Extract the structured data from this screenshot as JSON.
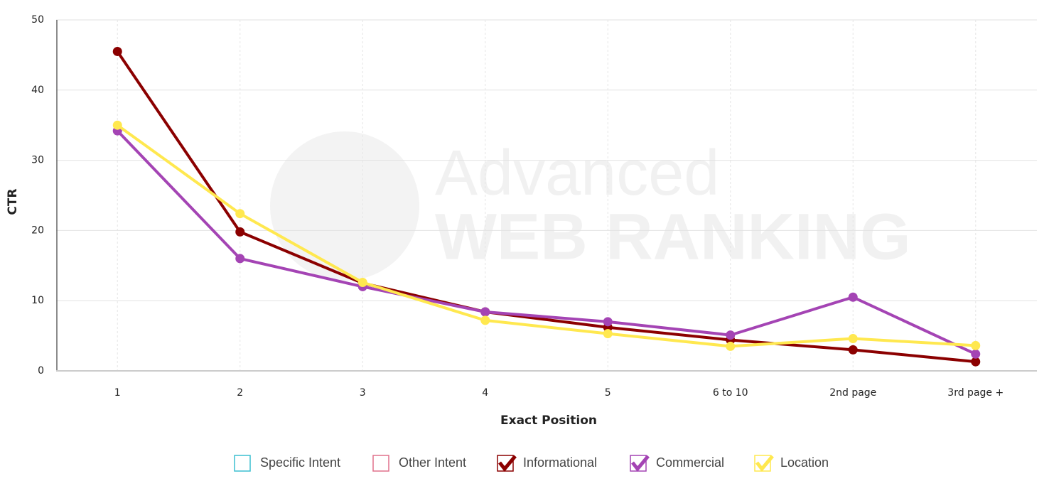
{
  "chart_data": {
    "type": "line",
    "watermark": [
      "Advanced",
      "WEB RANKING"
    ],
    "xlabel": "Exact Position",
    "ylabel": "CTR",
    "categories": [
      "1",
      "2",
      "3",
      "4",
      "5",
      "6 to 10",
      "2nd page",
      "3rd page +"
    ],
    "ylim": [
      0,
      50
    ],
    "yticks": [
      0,
      10,
      20,
      30,
      40,
      50
    ],
    "grid": true,
    "legend": "bottom",
    "series": [
      {
        "name": "Specific Intent",
        "color": "#3cbfd0",
        "visible": false,
        "values": [
          null,
          null,
          null,
          null,
          null,
          null,
          null,
          null
        ]
      },
      {
        "name": "Other Intent",
        "color": "#e0708c",
        "visible": false,
        "values": [
          null,
          null,
          null,
          null,
          null,
          null,
          null,
          null
        ]
      },
      {
        "name": "Informational",
        "color": "#8b0000",
        "visible": true,
        "values": [
          45.5,
          19.8,
          12.5,
          8.4,
          6.2,
          4.4,
          3.0,
          1.3
        ]
      },
      {
        "name": "Commercial",
        "color": "#a444b4",
        "visible": true,
        "values": [
          34.2,
          16.0,
          12.0,
          8.4,
          7.0,
          5.1,
          10.5,
          2.4
        ]
      },
      {
        "name": "Location",
        "color": "#ffe84f",
        "visible": true,
        "values": [
          35.0,
          22.4,
          12.6,
          7.2,
          5.3,
          3.5,
          4.6,
          3.6
        ]
      }
    ]
  }
}
